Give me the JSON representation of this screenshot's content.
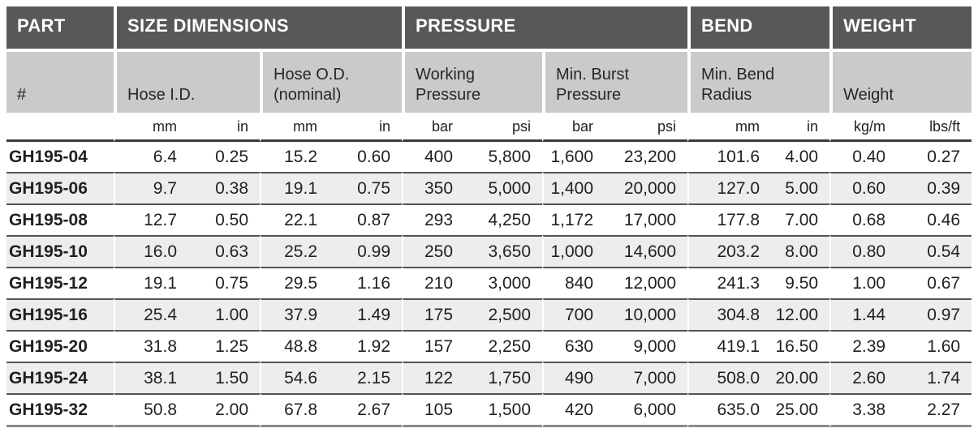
{
  "table": {
    "groups": [
      {
        "label": "PART"
      },
      {
        "label": "SIZE DIMENSIONS"
      },
      {
        "label": "PRESSURE"
      },
      {
        "label": "BEND"
      },
      {
        "label": "WEIGHT"
      }
    ],
    "subheaders": [
      {
        "label": "#"
      },
      {
        "label": "Hose I.D."
      },
      {
        "label": "Hose O.D.\n(nominal)"
      },
      {
        "label": "Working\nPressure"
      },
      {
        "label": "Min. Burst\nPressure"
      },
      {
        "label": "Min. Bend\nRadius"
      },
      {
        "label": "Weight"
      }
    ],
    "units": [
      "",
      "mm",
      "in",
      "mm",
      "in",
      "bar",
      "psi",
      "bar",
      "psi",
      "mm",
      "in",
      "kg/m",
      "lbs/ft"
    ],
    "rows": [
      [
        "GH195-04",
        "6.4",
        "0.25",
        "15.2",
        "0.60",
        "400",
        "5,800",
        "1,600",
        "23,200",
        "101.6",
        "4.00",
        "0.40",
        "0.27"
      ],
      [
        "GH195-06",
        "9.7",
        "0.38",
        "19.1",
        "0.75",
        "350",
        "5,000",
        "1,400",
        "20,000",
        "127.0",
        "5.00",
        "0.60",
        "0.39"
      ],
      [
        "GH195-08",
        "12.7",
        "0.50",
        "22.1",
        "0.87",
        "293",
        "4,250",
        "1,172",
        "17,000",
        "177.8",
        "7.00",
        "0.68",
        "0.46"
      ],
      [
        "GH195-10",
        "16.0",
        "0.63",
        "25.2",
        "0.99",
        "250",
        "3,650",
        "1,000",
        "14,600",
        "203.2",
        "8.00",
        "0.80",
        "0.54"
      ],
      [
        "GH195-12",
        "19.1",
        "0.75",
        "29.5",
        "1.16",
        "210",
        "3,000",
        "840",
        "12,000",
        "241.3",
        "9.50",
        "1.00",
        "0.67"
      ],
      [
        "GH195-16",
        "25.4",
        "1.00",
        "37.9",
        "1.49",
        "175",
        "2,500",
        "700",
        "10,000",
        "304.8",
        "12.00",
        "1.44",
        "0.97"
      ],
      [
        "GH195-20",
        "31.8",
        "1.25",
        "48.8",
        "1.92",
        "157",
        "2,250",
        "630",
        "9,000",
        "419.1",
        "16.50",
        "2.39",
        "1.60"
      ],
      [
        "GH195-24",
        "38.1",
        "1.50",
        "54.6",
        "2.15",
        "122",
        "1,750",
        "490",
        "7,000",
        "508.0",
        "20.00",
        "2.60",
        "1.74"
      ],
      [
        "GH195-32",
        "50.8",
        "2.00",
        "67.8",
        "2.67",
        "105",
        "1,500",
        "420",
        "6,000",
        "635.0",
        "25.00",
        "3.38",
        "2.27"
      ]
    ],
    "colors": {
      "group_header_bg": "#58585a",
      "group_header_text": "#ffffff",
      "subheader_bg": "#c9cacc",
      "body_text": "#231f20",
      "alt_row_bg": "#ededee",
      "row_divider": "#535457",
      "units_rule": "#3a3a3c",
      "bottom_rule": "#8a8b8e"
    }
  }
}
